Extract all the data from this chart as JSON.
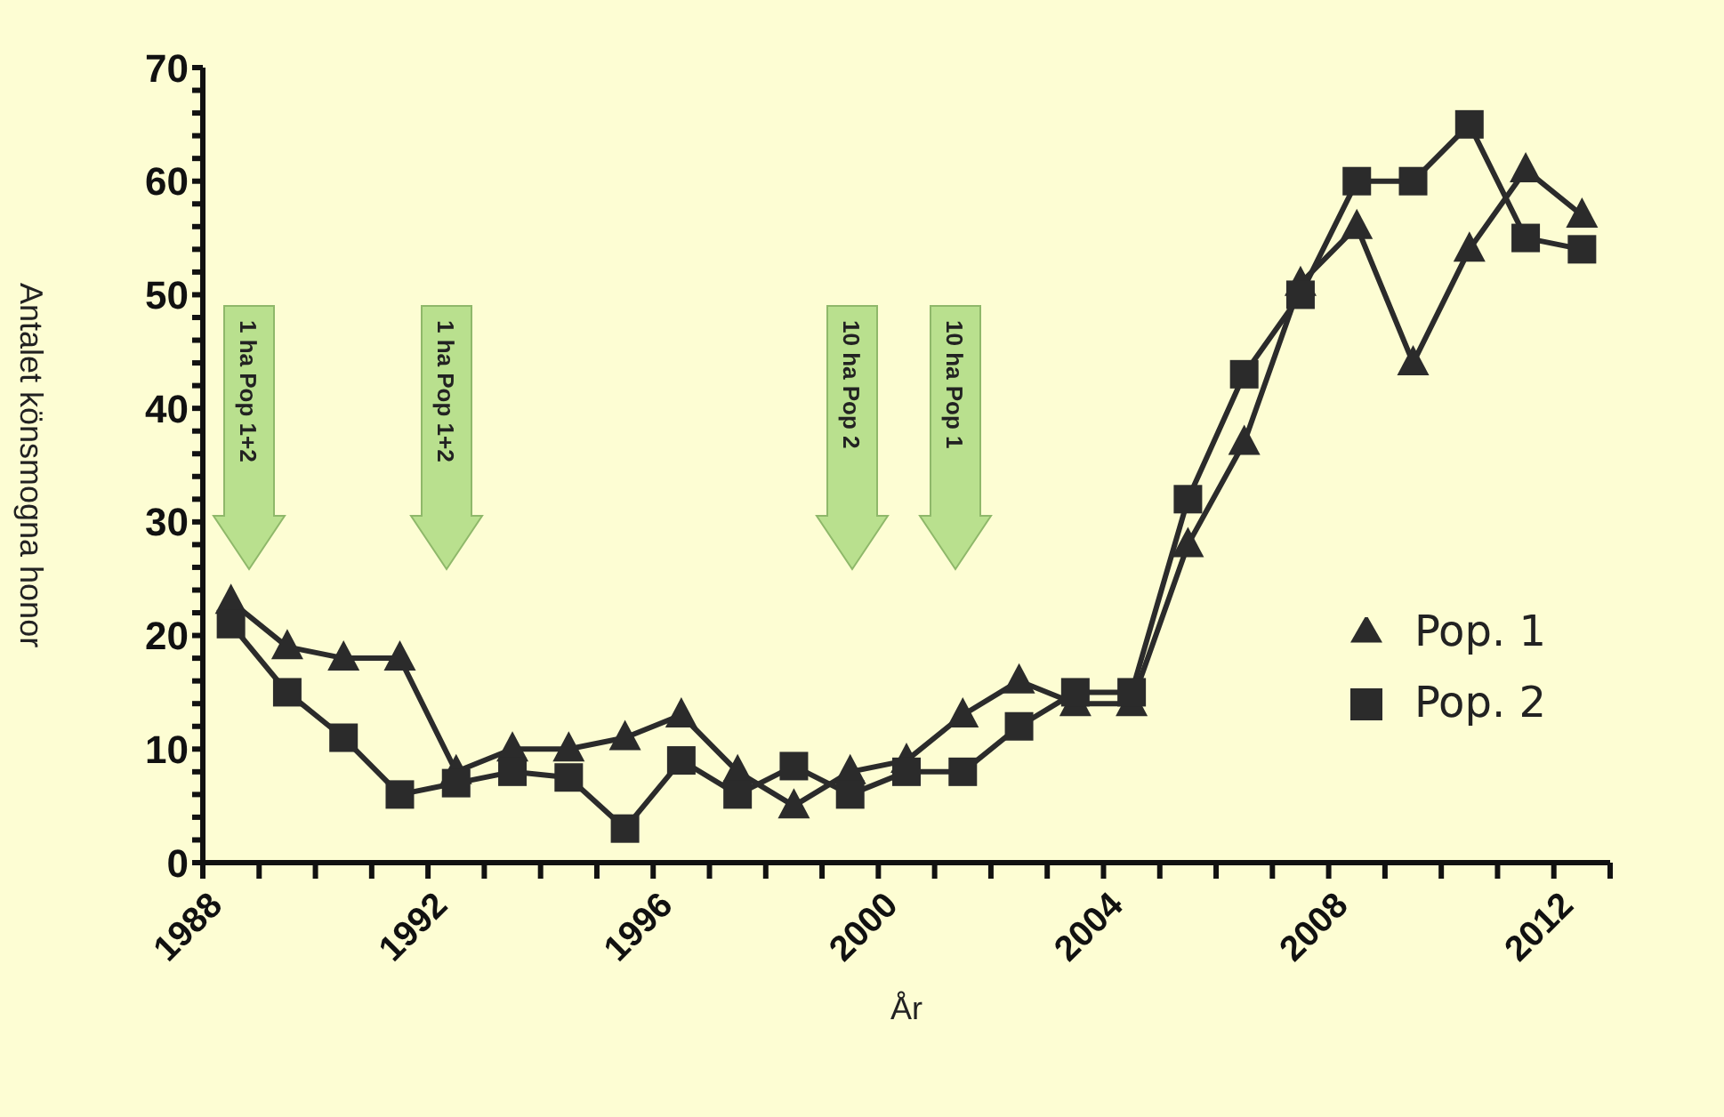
{
  "chart_data": {
    "type": "line",
    "xlabel": "År",
    "ylabel": "Antalet könsmogna honor",
    "x": [
      1988.5,
      1989.5,
      1990.5,
      1991.5,
      1992.5,
      1993.5,
      1994.5,
      1995.5,
      1996.5,
      1997.5,
      1998.5,
      1999.5,
      2000.5,
      2001.5,
      2002.5,
      2003.5,
      2004.5,
      2005.5,
      2006.5,
      2007.5,
      2008.5,
      2009.5,
      2010.5,
      2011.5,
      2012.5
    ],
    "series": [
      {
        "name": "Pop. 1",
        "color": "#2b2b2b",
        "marker": "triangle",
        "values": [
          23,
          19,
          18,
          18,
          8,
          10,
          10,
          11,
          13,
          8,
          5,
          8,
          9,
          13,
          16,
          14,
          14,
          28,
          37,
          51,
          56,
          44,
          54,
          61,
          57
        ]
      },
      {
        "name": "Pop. 2",
        "color": "#2b2b2b",
        "marker": "square",
        "values": [
          21,
          15,
          11,
          6,
          7,
          8,
          7.5,
          3,
          9,
          6,
          8.5,
          6,
          8,
          8,
          12,
          15,
          15,
          32,
          43,
          50,
          60,
          60,
          65,
          55,
          54
        ]
      }
    ],
    "xlim": [
      1988,
      2013
    ],
    "xticks": [
      1988,
      {
        "value": 1989,
        "label": null
      },
      {
        "value": 1990,
        "label": null
      },
      {
        "value": 1991,
        "label": null
      },
      1992,
      {
        "value": 1993,
        "label": null
      },
      {
        "value": 1994,
        "label": null
      },
      {
        "value": 1995,
        "label": null
      },
      1996,
      {
        "value": 1997,
        "label": null
      },
      {
        "value": 1998,
        "label": null
      },
      {
        "value": 1999,
        "label": null
      },
      2000,
      {
        "value": 2001,
        "label": null
      },
      {
        "value": 2002,
        "label": null
      },
      {
        "value": 2003,
        "label": null
      },
      2004,
      {
        "value": 2005,
        "label": null
      },
      {
        "value": 2006,
        "label": null
      },
      {
        "value": 2007,
        "label": null
      },
      2008,
      {
        "value": 2009,
        "label": null
      },
      {
        "value": 2010,
        "label": null
      },
      {
        "value": 2011,
        "label": null
      },
      2012,
      {
        "value": 2013,
        "label": null
      }
    ],
    "ylim": [
      0,
      70
    ],
    "yticks": [
      0,
      {
        "value": 2,
        "label": null
      },
      {
        "value": 4,
        "label": null
      },
      {
        "value": 6,
        "label": null
      },
      {
        "value": 8,
        "label": null
      },
      10,
      {
        "value": 12,
        "label": null
      },
      {
        "value": 14,
        "label": null
      },
      {
        "value": 16,
        "label": null
      },
      {
        "value": 18,
        "label": null
      },
      20,
      {
        "value": 22,
        "label": null
      },
      {
        "value": 24,
        "label": null
      },
      {
        "value": 26,
        "label": null
      },
      {
        "value": 28,
        "label": null
      },
      30,
      {
        "value": 32,
        "label": null
      },
      {
        "value": 34,
        "label": null
      },
      {
        "value": 36,
        "label": null
      },
      {
        "value": 38,
        "label": null
      },
      40,
      {
        "value": 42,
        "label": null
      },
      {
        "value": 44,
        "label": null
      },
      {
        "value": 46,
        "label": null
      },
      {
        "value": 48,
        "label": null
      },
      50,
      {
        "value": 52,
        "label": null
      },
      {
        "value": 54,
        "label": null
      },
      {
        "value": 56,
        "label": null
      },
      {
        "value": 58,
        "label": null
      },
      60,
      {
        "value": 62,
        "label": null
      },
      {
        "value": 64,
        "label": null
      },
      {
        "value": 66,
        "label": null
      },
      {
        "value": 68,
        "label": null
      },
      70
    ],
    "legend": "right",
    "grid": false,
    "line_style": "solid",
    "annotations": [
      "1 ha Pop 1+2",
      "1 ha Pop 1+2",
      "10 ha Pop 2",
      "10 ha Pop 1"
    ]
  }
}
